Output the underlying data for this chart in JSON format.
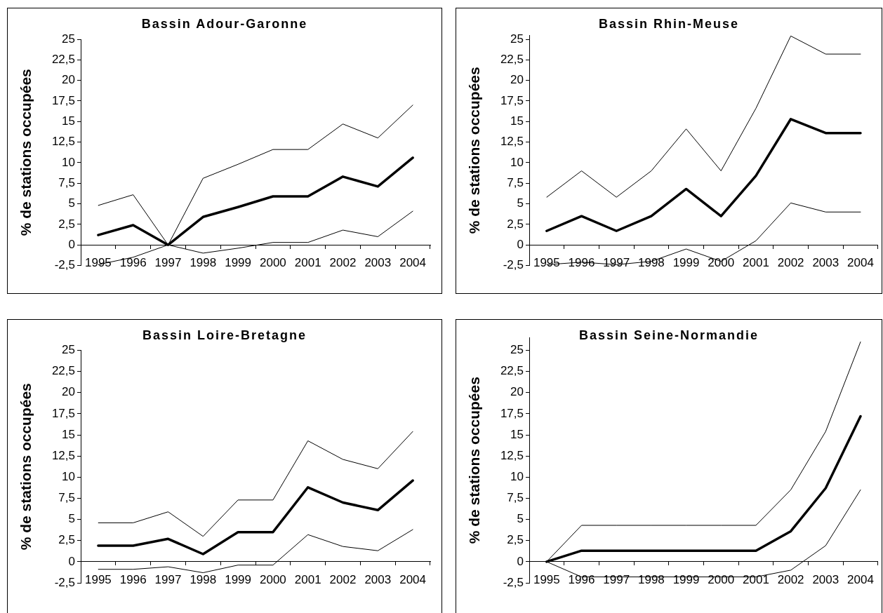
{
  "chart_data": [
    {
      "type": "line",
      "title": "Bassin Adour-Garonne",
      "ylabel": "% de stations occupées",
      "categories": [
        "1995",
        "1996",
        "1997",
        "1998",
        "1999",
        "2000",
        "2001",
        "2002",
        "2003",
        "2004"
      ],
      "series": [
        {
          "color": "#000000",
          "values": [
            1.2,
            2.4,
            0,
            3.4,
            4.6,
            5.9,
            5.9,
            8.3,
            7.1,
            10.6
          ]
        },
        {
          "color": "#000000",
          "values": [
            4.8,
            6.1,
            0,
            8.1,
            9.8,
            11.6,
            11.6,
            14.7,
            13.0,
            17.0
          ]
        },
        {
          "color": "#000000",
          "values": [
            -2.4,
            -1.5,
            0,
            -1.0,
            -0.4,
            0.3,
            0.3,
            1.8,
            1.0,
            4.1
          ]
        }
      ],
      "ylim": [
        -2.5,
        25
      ],
      "yticks": [
        {
          "value": -2.5,
          "label": "-2,5"
        },
        0,
        {
          "value": 2.5,
          "label": "2,5"
        },
        5,
        {
          "value": 7.5,
          "label": "7,5"
        },
        10,
        {
          "value": 12.5,
          "label": "12,5"
        },
        15,
        {
          "value": 17.5,
          "label": "17,5"
        },
        20,
        {
          "value": 22.5,
          "label": "22,5"
        },
        25
      ],
      "grid": false,
      "marker": "none",
      "line_style": "solid"
    },
    {
      "type": "line",
      "title": "Bassin Rhin-Meuse",
      "ylabel": "% de stations occupées",
      "categories": [
        "1995",
        "1996",
        "1997",
        "1998",
        "1999",
        "2000",
        "2001",
        "2002",
        "2003",
        "2004"
      ],
      "series": [
        {
          "color": "#000000",
          "values": [
            1.7,
            3.5,
            1.7,
            3.5,
            6.8,
            3.5,
            8.4,
            15.3,
            13.6,
            13.6
          ]
        },
        {
          "color": "#000000",
          "values": [
            5.8,
            9.0,
            5.8,
            9.0,
            14.1,
            9.0,
            16.6,
            25.4,
            23.2,
            23.2
          ]
        },
        {
          "color": "#000000",
          "values": [
            -2.4,
            -2.1,
            -2.4,
            -2.0,
            -0.5,
            -2.0,
            0.5,
            5.1,
            4.0,
            4.0
          ]
        }
      ],
      "ylim": [
        -2.5,
        25.5
      ],
      "yticks": [
        {
          "value": -2.5,
          "label": "-2,5"
        },
        0,
        {
          "value": 2.5,
          "label": "2,5"
        },
        5,
        {
          "value": 7.5,
          "label": "7,5"
        },
        10,
        {
          "value": 12.5,
          "label": "12,5"
        },
        15,
        {
          "value": 17.5,
          "label": "17,5"
        },
        20,
        {
          "value": 22.5,
          "label": "22,5"
        },
        25
      ],
      "grid": false,
      "marker": "none",
      "line_style": "solid"
    },
    {
      "type": "line",
      "title": "Bassin Loire-Bretagne",
      "ylabel": "% de stations occupées",
      "categories": [
        "1995",
        "1996",
        "1997",
        "1998",
        "1999",
        "2000",
        "2001",
        "2002",
        "2003",
        "2004"
      ],
      "series": [
        {
          "color": "#000000",
          "values": [
            1.9,
            1.9,
            2.7,
            0.9,
            3.5,
            3.5,
            8.8,
            7.0,
            6.1,
            9.6
          ]
        },
        {
          "color": "#000000",
          "values": [
            4.6,
            4.6,
            5.9,
            3.0,
            7.3,
            7.3,
            14.3,
            12.1,
            11.0,
            15.4
          ]
        },
        {
          "color": "#000000",
          "values": [
            -0.9,
            -0.9,
            -0.6,
            -1.3,
            -0.4,
            -0.4,
            3.2,
            1.8,
            1.3,
            3.8
          ]
        }
      ],
      "ylim": [
        -2.5,
        25
      ],
      "yticks": [
        {
          "value": -2.5,
          "label": "-2,5"
        },
        0,
        {
          "value": 2.5,
          "label": "2,5"
        },
        5,
        {
          "value": 7.5,
          "label": "7,5"
        },
        10,
        {
          "value": 12.5,
          "label": "12,5"
        },
        15,
        {
          "value": 17.5,
          "label": "17,5"
        },
        20,
        {
          "value": 22.5,
          "label": "22,5"
        },
        25
      ],
      "grid": false,
      "marker": "none",
      "line_style": "solid"
    },
    {
      "type": "line",
      "title": "Bassin Seine-Normandie",
      "ylabel": "% de stations occupées",
      "categories": [
        "1995",
        "1996",
        "1997",
        "1998",
        "1999",
        "2000",
        "2001",
        "2002",
        "2003",
        "2004"
      ],
      "series": [
        {
          "color": "#000000",
          "values": [
            0,
            1.3,
            1.3,
            1.3,
            1.3,
            1.3,
            1.3,
            3.6,
            8.7,
            17.2
          ]
        },
        {
          "color": "#000000",
          "values": [
            0,
            4.3,
            4.3,
            4.3,
            4.3,
            4.3,
            4.3,
            8.5,
            15.4,
            26.0
          ]
        },
        {
          "color": "#000000",
          "values": [
            0,
            -1.8,
            -1.8,
            -1.8,
            -1.8,
            -1.8,
            -1.8,
            -1.0,
            1.9,
            8.5
          ]
        }
      ],
      "ylim": [
        -2.5,
        26.5
      ],
      "yticks": [
        {
          "value": -2.5,
          "label": "-2,5"
        },
        0,
        {
          "value": 2.5,
          "label": "2,5"
        },
        5,
        {
          "value": 7.5,
          "label": "7,5"
        },
        10,
        {
          "value": 12.5,
          "label": "12,5"
        },
        15,
        {
          "value": 17.5,
          "label": "17,5"
        },
        20,
        {
          "value": 22.5,
          "label": "22,5"
        },
        25
      ],
      "grid": false,
      "marker": "none",
      "line_style": "solid"
    }
  ]
}
